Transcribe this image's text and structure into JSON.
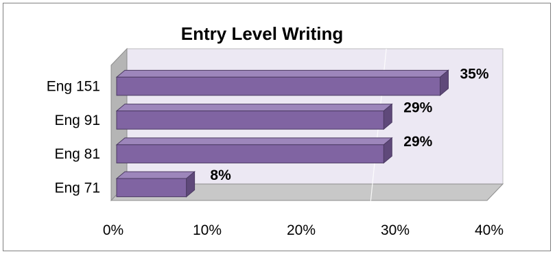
{
  "chart_data": {
    "type": "bar",
    "orientation": "horizontal",
    "title": "Entry Level Writing",
    "xlabel": "",
    "ylabel": "",
    "categories": [
      "Eng 151",
      "Eng 91",
      "Eng 81",
      "Eng 71"
    ],
    "values": [
      35,
      29,
      29,
      8
    ],
    "data_labels": [
      "35%",
      "29%",
      "29%",
      "8%"
    ],
    "xlim": [
      0,
      40
    ],
    "x_ticks": [
      "0%",
      "10%",
      "20%",
      "30%",
      "40%"
    ],
    "grid": false,
    "legend": "none",
    "style": "3d",
    "colors": {
      "bar_front": "#8064a2",
      "bar_top": "#9d86bb",
      "bar_side": "#5f497a",
      "bar_border": "#4b3a62",
      "plot_back": "#ece8f3",
      "plot_wall": "#b5b5b5",
      "plot_floor": "#c8c8c8"
    }
  }
}
